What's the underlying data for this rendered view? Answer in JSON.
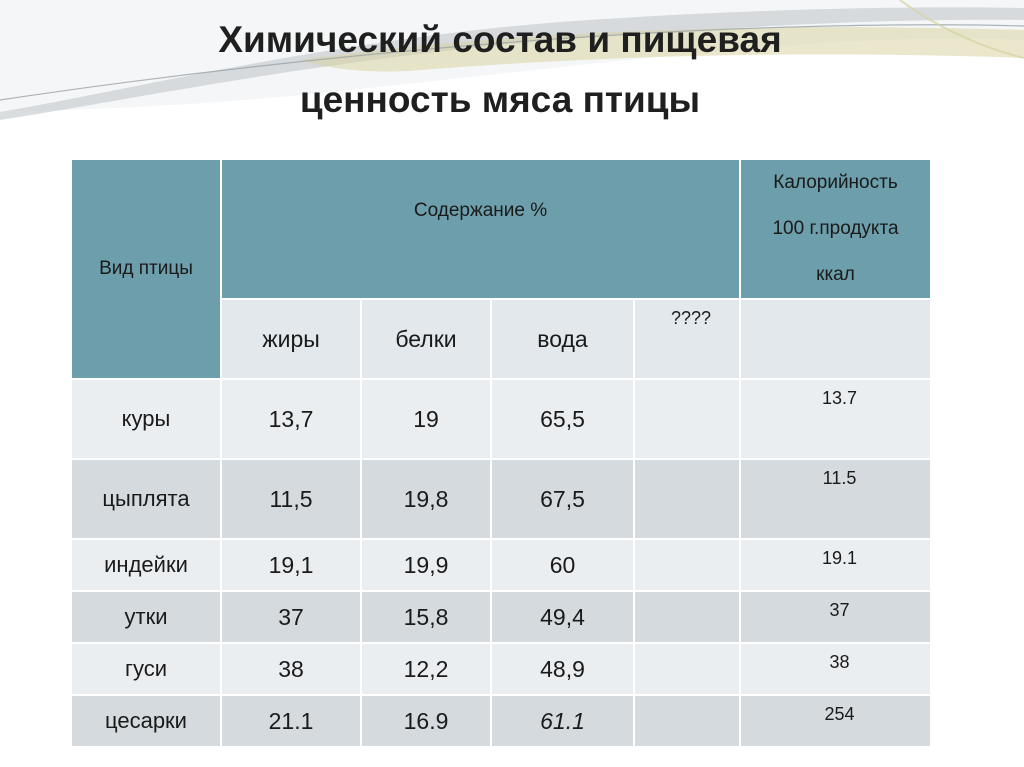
{
  "title": {
    "line1": "Химический состав и пищевая",
    "line2": "ценность мяса птицы"
  },
  "table": {
    "header": {
      "kind": "Вид птицы",
      "content": "Содержание %",
      "calorie_line1": "Калорийность",
      "calorie_line2": "100 г.продукта",
      "calorie_line3": "ккал"
    },
    "subheader": {
      "fat": "жиры",
      "protein": "белки",
      "water": "вода",
      "unknown": "????",
      "blank": ""
    },
    "rows": [
      {
        "name": "куры",
        "fat": "13,7",
        "protein": "19",
        "water": "65,5",
        "unknown": "",
        "calorie": "13.7"
      },
      {
        "name": "цыплята",
        "fat": "11,5",
        "protein": "19,8",
        "water": "67,5",
        "unknown": "",
        "calorie": "11.5"
      },
      {
        "name": "индейки",
        "fat": "19,1",
        "protein": "19,9",
        "water": "60",
        "unknown": "",
        "calorie": "19.1"
      },
      {
        "name": "утки",
        "fat": "37",
        "protein": "15,8",
        "water": "49,4",
        "unknown": "",
        "calorie": "37"
      },
      {
        "name": "гуси",
        "fat": "38",
        "protein": "12,2",
        "water": "48,9",
        "unknown": "",
        "calorie": "38"
      },
      {
        "name": "цесарки",
        "fat": "21.1",
        "protein": "16.9",
        "water": "61.1",
        "unknown": "",
        "calorie": "254"
      }
    ]
  }
}
